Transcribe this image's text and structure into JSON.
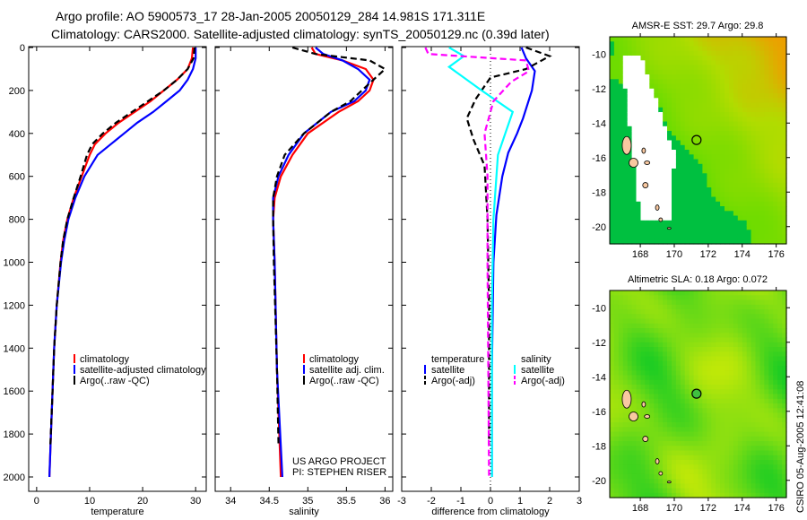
{
  "title_line1": "Argo profile: AO 5900573_17 28-Jan-2005 20050129_284 14.981S 171.311E",
  "title_line2": "Climatology: CARS2000. Satellite-adjusted climatology: synTS_20050129.nc (0.39d later)",
  "credit": [
    "US ARGO PROJECT",
    "PI: STEPHEN RISER"
  ],
  "timestamp": "CSIRO 05-Aug-2005 12:41:08",
  "colors": {
    "climatology": "#ff0000",
    "satellite": "#0000ff",
    "argo": "#000000",
    "sal_satellite": "#00ffff",
    "sal_argo": "#ff00ff"
  },
  "chart_data": [
    {
      "type": "line",
      "xlabel": "temperature",
      "ylabel": "depth",
      "xlim": [
        -1.5,
        32
      ],
      "ylim": [
        2050,
        0
      ],
      "xticks": [
        0,
        10,
        20,
        30
      ],
      "yticks": [
        0,
        200,
        400,
        600,
        800,
        1000,
        1200,
        1400,
        1600,
        1800,
        2000
      ],
      "legend": [
        "climatology",
        "satellite-adjusted climatology",
        "Argo(..raw -QC)"
      ],
      "series": [
        {
          "name": "climatology",
          "color": "#ff0000",
          "depth": [
            0,
            50,
            100,
            150,
            200,
            250,
            300,
            350,
            400,
            450,
            500,
            600,
            700,
            800,
            900,
            1000,
            1200,
            1400,
            1600,
            1800,
            2000
          ],
          "values": [
            29.5,
            29.3,
            28.5,
            26.5,
            24,
            21.5,
            18.5,
            15.5,
            13,
            11,
            10,
            8.5,
            7,
            5.8,
            5,
            4.5,
            3.8,
            3.3,
            3,
            2.7,
            2.4
          ]
        },
        {
          "name": "satellite-adjusted climatology",
          "color": "#0000ff",
          "depth": [
            0,
            50,
            100,
            150,
            200,
            250,
            300,
            350,
            400,
            450,
            500,
            600,
            700,
            800,
            900,
            1000,
            1200,
            1400,
            1600,
            1800,
            2000
          ],
          "values": [
            30,
            30,
            29.5,
            28.5,
            27,
            24.5,
            22,
            19,
            16.5,
            14,
            11.5,
            9,
            7.3,
            6,
            5.2,
            4.6,
            3.8,
            3.3,
            3,
            2.7,
            2.4
          ]
        },
        {
          "name": "Argo(..raw -QC)",
          "color": "#000000",
          "dashed": true,
          "depth": [
            0,
            50,
            100,
            150,
            200,
            250,
            300,
            350,
            400,
            450,
            500,
            600,
            700,
            800,
            900,
            1000,
            1200,
            1400,
            1600,
            1850
          ],
          "values": [
            29.8,
            29.6,
            28.5,
            26.5,
            24,
            21,
            18,
            15,
            12.5,
            10.5,
            9.5,
            8.3,
            7,
            5.8,
            5,
            4.5,
            3.8,
            3.3,
            3,
            2.6
          ]
        }
      ]
    },
    {
      "type": "line",
      "xlabel": "salinity",
      "xlim": [
        33.8,
        36.1
      ],
      "ylim": [
        2050,
        0
      ],
      "xticks": [
        34,
        34.5,
        35,
        35.5,
        36
      ],
      "legend": [
        "climatology",
        "satellite adj. clim.",
        "Argo(..raw -QC)"
      ],
      "series": [
        {
          "name": "climatology",
          "color": "#ff0000",
          "depth": [
            0,
            30,
            60,
            100,
            150,
            200,
            250,
            300,
            400,
            500,
            600,
            700,
            800,
            1000,
            1500,
            2000
          ],
          "values": [
            35.05,
            35.1,
            35.45,
            35.75,
            35.85,
            35.8,
            35.65,
            35.4,
            35.0,
            34.8,
            34.65,
            34.57,
            34.55,
            34.57,
            34.6,
            34.65
          ]
        },
        {
          "name": "satellite adj. clim.",
          "color": "#0000ff",
          "depth": [
            0,
            30,
            60,
            100,
            150,
            200,
            250,
            300,
            400,
            500,
            600,
            700,
            800,
            1000,
            1500,
            2000
          ],
          "values": [
            35.1,
            35.2,
            35.45,
            35.65,
            35.8,
            35.75,
            35.6,
            35.3,
            34.95,
            34.75,
            34.62,
            34.55,
            34.55,
            34.57,
            34.6,
            34.67
          ]
        },
        {
          "name": "Argo(..raw -QC)",
          "color": "#000000",
          "dashed": true,
          "depth": [
            0,
            30,
            60,
            100,
            150,
            200,
            250,
            300,
            400,
            500,
            600,
            700,
            800,
            1000,
            1500,
            1850
          ],
          "values": [
            34.8,
            35.1,
            35.8,
            36.0,
            35.85,
            35.7,
            35.55,
            35.3,
            34.95,
            34.7,
            34.6,
            34.55,
            34.55,
            34.56,
            34.6,
            34.62
          ]
        }
      ]
    },
    {
      "type": "line",
      "xlabel": "difference from climatology",
      "xlim": [
        -3,
        3
      ],
      "ylim": [
        2050,
        0
      ],
      "xticks": [
        -3,
        -2,
        -1,
        0,
        1,
        2,
        3
      ],
      "legend_groups": [
        {
          "title": "temperature",
          "items": [
            "satellite",
            "Argo(-adj)"
          ]
        },
        {
          "title": "salinity",
          "items": [
            "satellite",
            "Argo(-adj)"
          ]
        }
      ],
      "series": [
        {
          "name": "temperature satellite",
          "color": "#0000ff",
          "depth": [
            0,
            50,
            110,
            200,
            330,
            400,
            490,
            600,
            780,
            1000,
            1500,
            2000
          ],
          "values": [
            1.05,
            1.2,
            1.5,
            1.4,
            1.1,
            0.9,
            0.6,
            0.4,
            0.2,
            0.1,
            0.05,
            0.05
          ]
        },
        {
          "name": "temperature Argo(-adj)",
          "color": "#000000",
          "dashed": true,
          "depth": [
            0,
            40,
            100,
            140,
            240,
            330,
            430,
            550,
            800,
            1200,
            1850
          ],
          "values": [
            1.2,
            2.0,
            1.2,
            0,
            -0.5,
            -0.8,
            -0.57,
            -0.2,
            -0.1,
            -0.05,
            -0.05
          ]
        },
        {
          "name": "salinity satellite",
          "color": "#00ffff",
          "depth": [
            0,
            40,
            90,
            200,
            300,
            400,
            500,
            800,
            1200,
            2000
          ],
          "values": [
            -1.4,
            -0.9,
            -1.4,
            -0.3,
            0.75,
            0.5,
            0.25,
            0.1,
            0.05,
            0.05
          ]
        },
        {
          "name": "salinity Argo(-adj)",
          "color": "#ff00ff",
          "dashed": true,
          "depth": [
            0,
            30,
            60,
            110,
            160,
            250,
            300,
            400,
            600,
            1000,
            2000
          ],
          "values": [
            -2.2,
            -2.1,
            1.2,
            1.3,
            0.7,
            0.1,
            0,
            -0.2,
            -0.1,
            -0.1,
            -0.05
          ]
        }
      ]
    },
    {
      "type": "heatmap",
      "title": "AMSR-E SST: 29.7 Argo: 29.8",
      "xticks": [
        168,
        170,
        172,
        174,
        176
      ],
      "yticks": [
        -10,
        -12,
        -14,
        -16,
        -18,
        -20
      ],
      "xlim": [
        166.2,
        176.6
      ],
      "ylim": [
        -21,
        -9
      ],
      "marker": [
        171.311,
        -14.981
      ]
    },
    {
      "type": "heatmap",
      "title": "Altimetric SLA: 0.18 Argo: 0.072",
      "xticks": [
        168,
        170,
        172,
        174,
        176
      ],
      "yticks": [
        -10,
        -12,
        -14,
        -16,
        -18,
        -20
      ],
      "xlim": [
        166.2,
        176.6
      ],
      "ylim": [
        -21,
        -9
      ],
      "marker": [
        171.311,
        -14.981
      ]
    }
  ]
}
